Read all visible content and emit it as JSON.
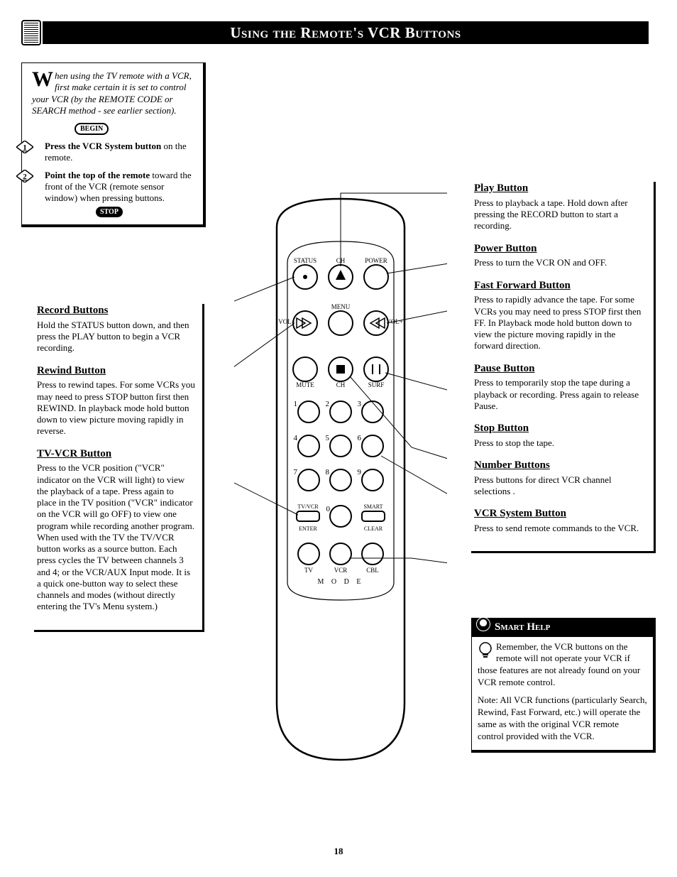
{
  "page": {
    "title": "Using the Remote's VCR Buttons",
    "page_number": "18"
  },
  "intro": {
    "dropcap": "W",
    "lead_text": "hen using the TV remote with a VCR, first make certain it is set to control your VCR (by the REMOTE CODE or SEARCH method - see earlier section).",
    "begin_label": "BEGIN",
    "step1_bold": "Press the VCR System button",
    "step1_rest": " on the remote.",
    "step2_bold": "Point the top of the remote",
    "step2_rest": " toward the front of the VCR (remote sensor window) when pressing buttons.",
    "stop_label": "STOP"
  },
  "left_sections": [
    {
      "title": "Record Buttons",
      "body": "Hold the STATUS button down, and then press the PLAY button to begin a VCR recording."
    },
    {
      "title": "Rewind Button",
      "body": "Press to rewind tapes. For some VCRs you may need to press STOP button first then REWIND. In playback mode hold button down to view picture moving rapidly in reverse."
    },
    {
      "title": "TV-VCR Button",
      "body": "Press to the VCR position (\"VCR\" indicator on the VCR will light) to view the playback of a tape. Press again to place in the TV position (\"VCR\" indicator on the VCR will go OFF) to view one program while recording another program. When used with the TV the TV/VCR button works as a source button. Each press cycles the TV between channels 3 and 4; or the VCR/AUX Input mode. It is a quick one-button way to select these channels and modes (without directly entering the TV's Menu system.)"
    }
  ],
  "right_sections": [
    {
      "title": "Play Button",
      "body": "Press to playback a tape. Hold down after pressing the RECORD button to start a recording."
    },
    {
      "title": "Power Button",
      "body": "Press to turn the VCR ON and OFF."
    },
    {
      "title": "Fast Forward Button",
      "body": "Press to rapidly advance the tape. For some VCRs you may need to press STOP first then FF. In Playback mode hold button down to view the picture moving rapidly in the forward direction."
    },
    {
      "title": "Pause Button",
      "body": "Press to temporarily stop the tape during a playback or recording. Press again to release Pause."
    },
    {
      "title": "Stop Button",
      "body": "Press to stop the tape."
    },
    {
      "title": "Number Buttons",
      "body": "Press buttons for direct VCR channel selections ."
    },
    {
      "title": "VCR System Button",
      "body": "Press to send remote commands to the VCR."
    }
  ],
  "smart_help": {
    "header": "Smart Help",
    "p1": "Remember, the VCR buttons on the remote will not operate your VCR if those features are not already found on your VCR remote control.",
    "p2": "Note: All VCR functions (particularly Search, Rewind, Fast Forward, etc.) will operate the same as with the original VCR remote control provided with the VCR."
  },
  "remote": {
    "labels": {
      "status": "STATUS",
      "power": "POWER",
      "ch_up": "CH",
      "menu": "MENU",
      "vol_minus": "VOL\n−",
      "vol_plus": "VOL\n+",
      "mute": "MUTE",
      "ch_dn": "CH",
      "surf": "SURF",
      "numbers": [
        "1",
        "2",
        "3",
        "4",
        "5",
        "6",
        "7",
        "8",
        "9",
        "0"
      ],
      "tvvcr": "TV/VCR",
      "smart": "SMART",
      "enter": "ENTER",
      "clear": "CLEAR",
      "mode_tv": "TV",
      "mode_vcr": "VCR",
      "mode_cbl": "CBL",
      "mode_word": "M   O   D   E"
    },
    "style": {
      "outline_color": "#000000",
      "fill_color": "#ffffff",
      "button_fill": "#ffffff",
      "button_stroke": "#000000",
      "stroke_width": 2,
      "label_fontsize": 9,
      "num_fontsize": 11
    }
  }
}
